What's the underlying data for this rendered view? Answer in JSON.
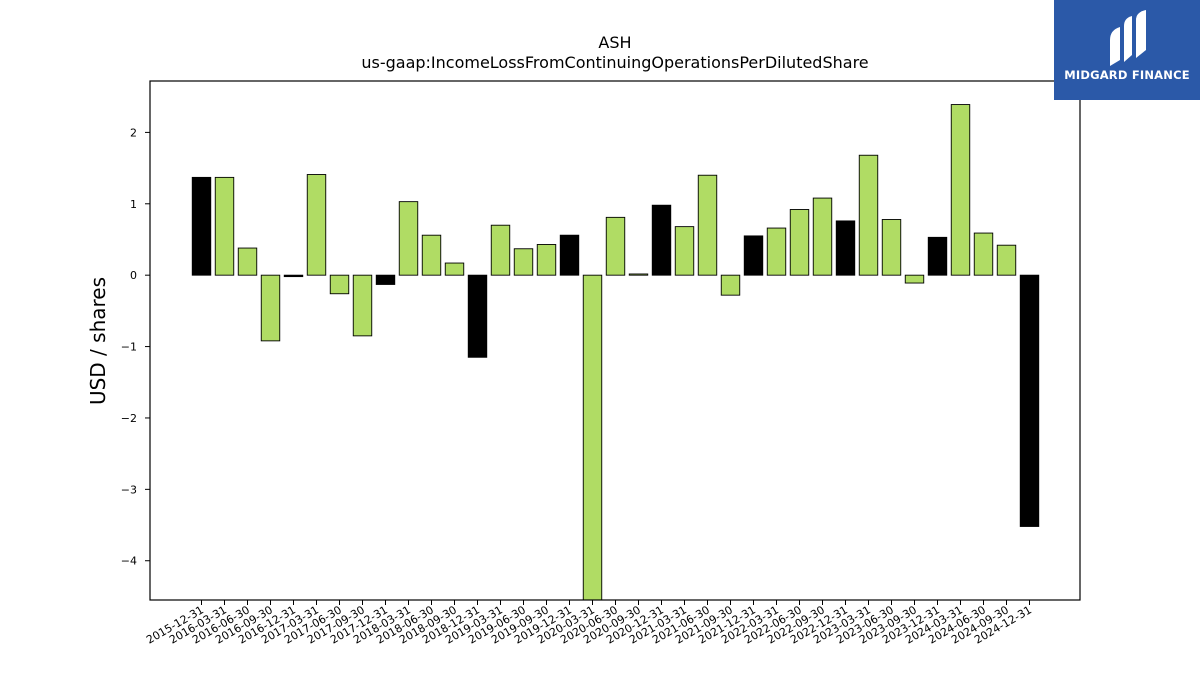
{
  "brand": {
    "name": "MIDGARD FINANCE",
    "logo_icon": "midgard-finance-logo-icon",
    "background": "#2b59a8"
  },
  "chart_data": {
    "type": "bar",
    "title": "ASH",
    "subtitle": "us-gaap:IncomeLossFromContinuingOperationsPerDilutedShare",
    "xlabel": "",
    "ylabel": "USD / shares",
    "ylim": [
      -4.55,
      2.72
    ],
    "yticks": [
      2,
      1,
      0,
      -1,
      -2,
      -3,
      -4
    ],
    "grid": false,
    "colors": {
      "q4": "#000000",
      "other": "#b0dc64",
      "edge": "#000000"
    },
    "categories": [
      "2015-12-31",
      "2016-03-31",
      "2016-06-30",
      "2016-09-30",
      "2016-12-31",
      "2017-03-31",
      "2017-06-30",
      "2017-09-30",
      "2017-12-31",
      "2018-03-31",
      "2018-06-30",
      "2018-09-30",
      "2018-12-31",
      "2019-03-31",
      "2019-06-30",
      "2019-09-30",
      "2019-12-31",
      "2020-03-31",
      "2020-06-30",
      "2020-09-30",
      "2020-12-31",
      "2021-03-31",
      "2021-06-30",
      "2021-09-30",
      "2021-12-31",
      "2022-03-31",
      "2022-06-30",
      "2022-09-30",
      "2022-12-31",
      "2023-03-31",
      "2023-06-30",
      "2023-09-30",
      "2023-12-31",
      "2024-03-31",
      "2024-06-30",
      "2024-09-30",
      "2024-12-31"
    ],
    "values": [
      1.37,
      1.37,
      0.38,
      -0.92,
      -0.02,
      1.41,
      -0.26,
      -0.85,
      -0.13,
      1.03,
      0.56,
      0.17,
      -1.15,
      0.7,
      0.37,
      0.43,
      0.56,
      -4.55,
      0.81,
      0.0,
      0.98,
      0.68,
      1.4,
      -0.28,
      0.55,
      0.66,
      0.92,
      1.08,
      0.76,
      1.68,
      0.78,
      -0.11,
      0.53,
      2.39,
      0.59,
      0.42,
      -3.52
    ]
  }
}
